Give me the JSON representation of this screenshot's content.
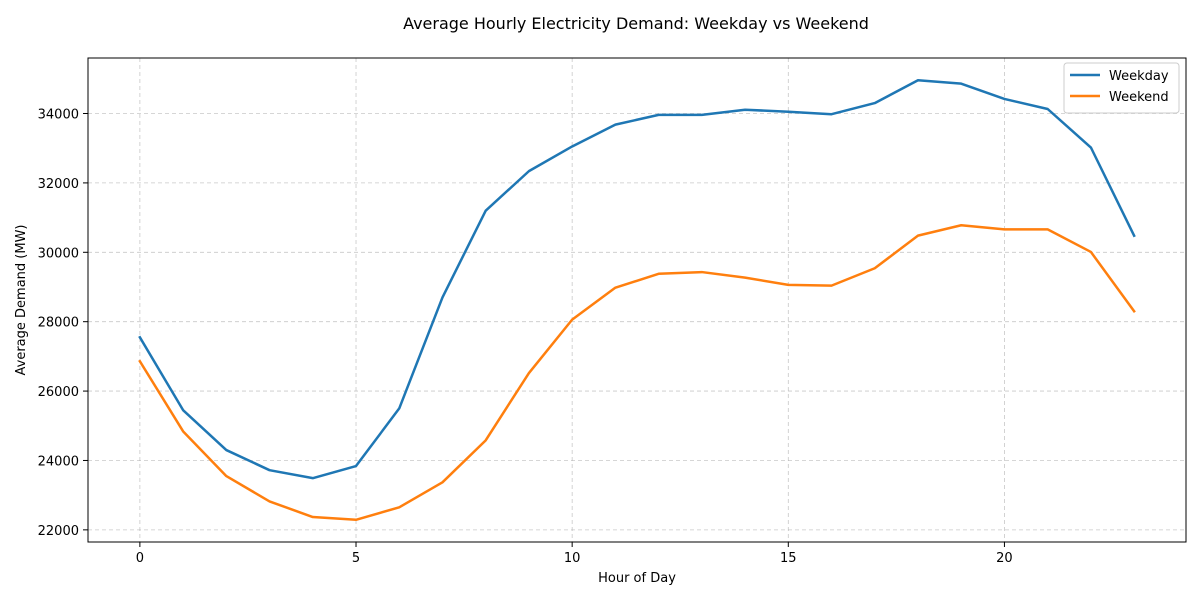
{
  "chart_data": {
    "type": "line",
    "title": "Average Hourly Electricity Demand: Weekday vs Weekend",
    "xlabel": "Hour of Day",
    "ylabel": "Average Demand (MW)",
    "xlim": [
      -1.2,
      24.2
    ],
    "ylim": [
      21650,
      35600
    ],
    "xticks": [
      0,
      5,
      10,
      15,
      20
    ],
    "yticks": [
      22000,
      24000,
      26000,
      28000,
      30000,
      32000,
      34000
    ],
    "grid": true,
    "legend_position": "top-right",
    "x": [
      0,
      1,
      2,
      3,
      4,
      5,
      6,
      7,
      8,
      9,
      10,
      11,
      12,
      13,
      14,
      15,
      16,
      17,
      18,
      19,
      20,
      21,
      22,
      23
    ],
    "series": [
      {
        "name": "Weekday",
        "color": "#1f77b4",
        "values": [
          27550,
          25450,
          24300,
          23720,
          23490,
          23840,
          25500,
          28700,
          31200,
          32340,
          33050,
          33680,
          33960,
          33960,
          34110,
          34050,
          33980,
          34300,
          34960,
          34860,
          34420,
          34130,
          33020,
          30480
        ]
      },
      {
        "name": "Weekend",
        "color": "#ff7f0e",
        "values": [
          26860,
          24840,
          23550,
          22820,
          22370,
          22290,
          22650,
          23370,
          24580,
          26520,
          28060,
          28980,
          29380,
          29430,
          29270,
          29060,
          29040,
          29540,
          30480,
          30780,
          30660,
          30660,
          30010,
          28300
        ]
      }
    ]
  }
}
